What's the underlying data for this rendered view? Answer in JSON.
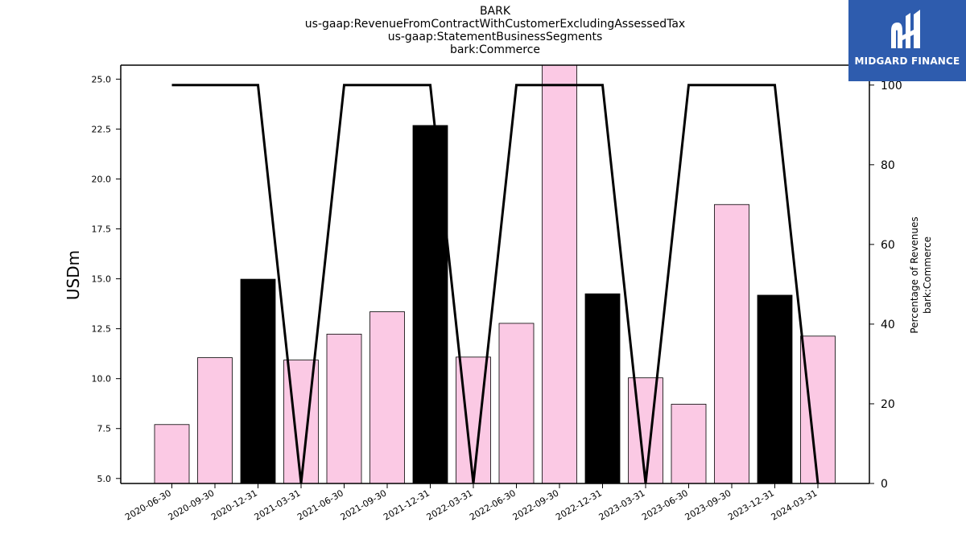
{
  "header": {
    "title_lines": [
      "BARK",
      "us-gaap:RevenueFromContractWithCustomerExcludingAssessedTax",
      "us-gaap:StatementBusinessSegments",
      "bark:Commerce"
    ]
  },
  "logo": {
    "text": "MIDGARD FINANCE",
    "color": "#2e5cae"
  },
  "chart_data": {
    "type": "bar",
    "categories": [
      "2020-06-30",
      "2020-09-30",
      "2020-12-31",
      "2021-03-31",
      "2021-06-30",
      "2021-09-30",
      "2021-12-31",
      "2022-03-31",
      "2022-06-30",
      "2022-09-30",
      "2022-12-31",
      "2023-03-31",
      "2023-06-30",
      "2023-09-30",
      "2023-12-31",
      "2024-03-31"
    ],
    "values": [
      7.7,
      11.05,
      14.98,
      10.93,
      12.23,
      13.35,
      22.68,
      11.08,
      12.77,
      25.9,
      14.25,
      10.04,
      8.72,
      18.72,
      14.18,
      12.13
    ],
    "bar_colors": [
      "#fbc9e4",
      "#fbc9e4",
      "#000000",
      "#fbc9e4",
      "#fbc9e4",
      "#fbc9e4",
      "#000000",
      "#fbc9e4",
      "#fbc9e4",
      "#fbc9e4",
      "#000000",
      "#fbc9e4",
      "#fbc9e4",
      "#fbc9e4",
      "#000000",
      "#fbc9e4"
    ],
    "ylabel": "USDm",
    "ylim": [
      4.75,
      25.7
    ],
    "yticks": [
      "5.0",
      "7.5",
      "10.0",
      "12.5",
      "15.0",
      "17.5",
      "20.0",
      "22.5",
      "25.0"
    ],
    "secondary": {
      "type": "line",
      "label_lines": [
        "Percentage of Revenues",
        "bark:Commerce"
      ],
      "values": [
        100,
        100,
        100,
        0,
        100,
        100,
        100,
        0,
        100,
        100,
        100,
        0,
        100,
        100,
        100,
        0
      ],
      "ylim": [
        0,
        105
      ],
      "yticks": [
        "0",
        "20",
        "40",
        "60",
        "80",
        "100"
      ],
      "color": "#000000"
    },
    "grid": false,
    "legend": "none"
  }
}
